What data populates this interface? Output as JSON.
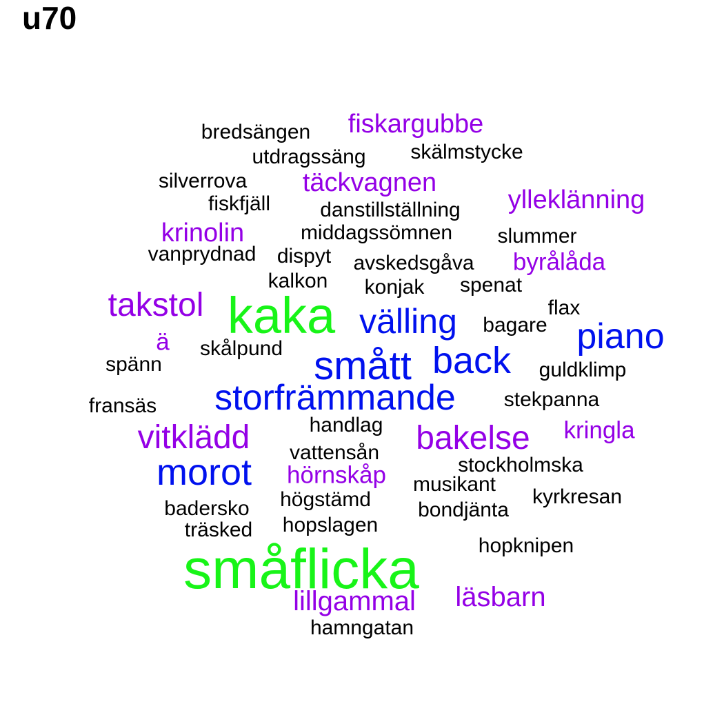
{
  "title": "u70",
  "colors": {
    "black": "#000000",
    "purple": "#9400e6",
    "blue": "#0011ee",
    "green": "#18f418"
  },
  "words": [
    {
      "text": "småflicka",
      "color": "green"
    },
    {
      "text": "kaka",
      "color": "green"
    },
    {
      "text": "smått",
      "color": "blue"
    },
    {
      "text": "back",
      "color": "blue"
    },
    {
      "text": "välling",
      "color": "blue"
    },
    {
      "text": "piano",
      "color": "blue"
    },
    {
      "text": "storfrämmande",
      "color": "blue"
    },
    {
      "text": "morot",
      "color": "blue"
    },
    {
      "text": "takstol",
      "color": "purple"
    },
    {
      "text": "vitklädd",
      "color": "purple"
    },
    {
      "text": "bakelse",
      "color": "purple"
    },
    {
      "text": "lillgammal",
      "color": "purple"
    },
    {
      "text": "läsbarn",
      "color": "purple"
    },
    {
      "text": "fiskargubbe",
      "color": "purple"
    },
    {
      "text": "täckvagnen",
      "color": "purple"
    },
    {
      "text": "ylleklänning",
      "color": "purple"
    },
    {
      "text": "krinolin",
      "color": "purple"
    },
    {
      "text": "byrålåda",
      "color": "purple"
    },
    {
      "text": "kringla",
      "color": "purple"
    },
    {
      "text": "hörnskåp",
      "color": "purple"
    },
    {
      "text": "ä",
      "color": "purple"
    },
    {
      "text": "bredsängen",
      "color": "black"
    },
    {
      "text": "utdragssäng",
      "color": "black"
    },
    {
      "text": "skälmstycke",
      "color": "black"
    },
    {
      "text": "silverrova",
      "color": "black"
    },
    {
      "text": "fiskfjäll",
      "color": "black"
    },
    {
      "text": "danstillställning",
      "color": "black"
    },
    {
      "text": "middagssömnen",
      "color": "black"
    },
    {
      "text": "slummer",
      "color": "black"
    },
    {
      "text": "vanprydnad",
      "color": "black"
    },
    {
      "text": "dispyt",
      "color": "black"
    },
    {
      "text": "avskedsgåva",
      "color": "black"
    },
    {
      "text": "kalkon",
      "color": "black"
    },
    {
      "text": "konjak",
      "color": "black"
    },
    {
      "text": "spenat",
      "color": "black"
    },
    {
      "text": "flax",
      "color": "black"
    },
    {
      "text": "bagare",
      "color": "black"
    },
    {
      "text": "skålpund",
      "color": "black"
    },
    {
      "text": "spänn",
      "color": "black"
    },
    {
      "text": "guldklimp",
      "color": "black"
    },
    {
      "text": "fransäs",
      "color": "black"
    },
    {
      "text": "stekpanna",
      "color": "black"
    },
    {
      "text": "handlag",
      "color": "black"
    },
    {
      "text": "vattensån",
      "color": "black"
    },
    {
      "text": "stockholmska",
      "color": "black"
    },
    {
      "text": "musikant",
      "color": "black"
    },
    {
      "text": "högstämd",
      "color": "black"
    },
    {
      "text": "kyrkresan",
      "color": "black"
    },
    {
      "text": "badersko",
      "color": "black"
    },
    {
      "text": "bondjänta",
      "color": "black"
    },
    {
      "text": "träsked",
      "color": "black"
    },
    {
      "text": "hopslagen",
      "color": "black"
    },
    {
      "text": "hopknipen",
      "color": "black"
    },
    {
      "text": "hamngatan",
      "color": "black"
    }
  ]
}
